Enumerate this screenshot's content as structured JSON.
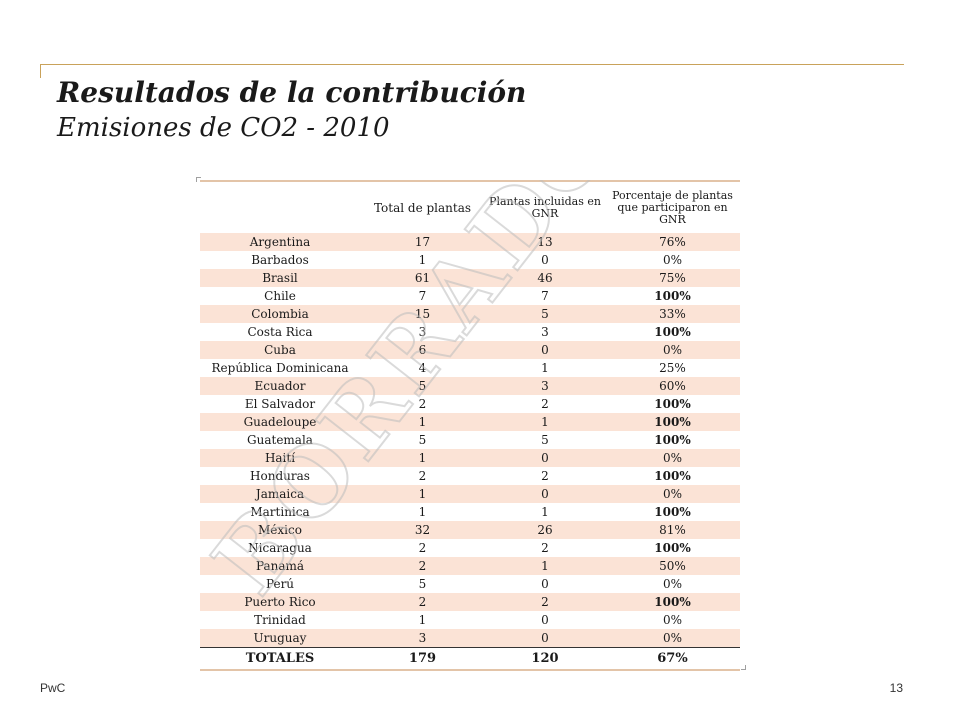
{
  "slide": {
    "title": "Resultados de la contribución",
    "subtitle": "Emisiones de CO2 - 2010",
    "footer_left": "PwC",
    "page_number": "13",
    "watermark_text": "BORRADOR"
  },
  "table": {
    "headers": [
      "",
      "Total de plantas",
      "Plantas incluidas en GNR",
      "Porcentaje de plantas que participaron en GNR"
    ],
    "rows": [
      {
        "country": "Argentina",
        "total": "17",
        "included": "13",
        "pct": "76%"
      },
      {
        "country": "Barbados",
        "total": "1",
        "included": "0",
        "pct": "0%"
      },
      {
        "country": "Brasil",
        "total": "61",
        "included": "46",
        "pct": "75%"
      },
      {
        "country": "Chile",
        "total": "7",
        "included": "7",
        "pct": "100%"
      },
      {
        "country": "Colombia",
        "total": "15",
        "included": "5",
        "pct": "33%"
      },
      {
        "country": "Costa Rica",
        "total": "3",
        "included": "3",
        "pct": "100%"
      },
      {
        "country": "Cuba",
        "total": "6",
        "included": "0",
        "pct": "0%"
      },
      {
        "country": "República Dominicana",
        "total": "4",
        "included": "1",
        "pct": "25%"
      },
      {
        "country": "Ecuador",
        "total": "5",
        "included": "3",
        "pct": "60%"
      },
      {
        "country": "El Salvador",
        "total": "2",
        "included": "2",
        "pct": "100%"
      },
      {
        "country": "Guadeloupe",
        "total": "1",
        "included": "1",
        "pct": "100%"
      },
      {
        "country": "Guatemala",
        "total": "5",
        "included": "5",
        "pct": "100%"
      },
      {
        "country": "Haití",
        "total": "1",
        "included": "0",
        "pct": "0%"
      },
      {
        "country": "Honduras",
        "total": "2",
        "included": "2",
        "pct": "100%"
      },
      {
        "country": "Jamaica",
        "total": "1",
        "included": "0",
        "pct": "0%"
      },
      {
        "country": "Martinica",
        "total": "1",
        "included": "1",
        "pct": "100%"
      },
      {
        "country": "México",
        "total": "32",
        "included": "26",
        "pct": "81%"
      },
      {
        "country": "Nicaragua",
        "total": "2",
        "included": "2",
        "pct": "100%"
      },
      {
        "country": "Panamá",
        "total": "2",
        "included": "1",
        "pct": "50%"
      },
      {
        "country": "Perú",
        "total": "5",
        "included": "0",
        "pct": "0%"
      },
      {
        "country": "Puerto Rico",
        "total": "2",
        "included": "2",
        "pct": "100%"
      },
      {
        "country": "Trinidad",
        "total": "1",
        "included": "0",
        "pct": "0%"
      },
      {
        "country": "Uruguay",
        "total": "3",
        "included": "0",
        "pct": "0%"
      }
    ],
    "totals": {
      "label": "TOTALES",
      "total": "179",
      "included": "120",
      "pct": "67%"
    }
  }
}
